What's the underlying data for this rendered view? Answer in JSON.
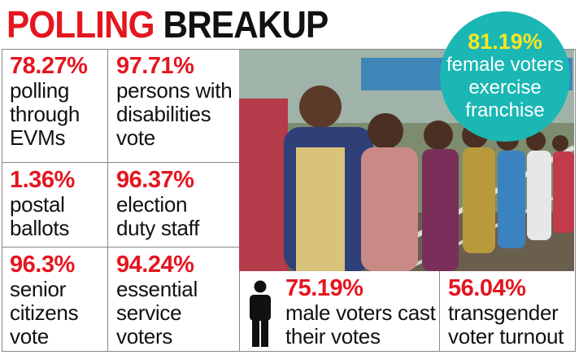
{
  "title": {
    "part1": "POLLING",
    "part2": "BREAKUP"
  },
  "stats": [
    {
      "percent": "78.27%",
      "label": [
        "polling",
        "through",
        "EVMs"
      ]
    },
    {
      "percent": "97.71%",
      "label": [
        "persons with",
        "disabilities",
        "vote"
      ]
    },
    {
      "percent": "1.36%",
      "label": [
        "postal",
        "ballots"
      ]
    },
    {
      "percent": "96.37%",
      "label": [
        "election",
        "duty staff"
      ]
    },
    {
      "percent": "96.3%",
      "label": [
        "senior",
        "citizens",
        "vote"
      ]
    },
    {
      "percent": "94.24%",
      "label": [
        "essential",
        "service",
        "voters"
      ]
    }
  ],
  "female": {
    "percent": "81.19%",
    "label": [
      "female voters",
      "exercise",
      "franchise"
    ]
  },
  "male": {
    "percent": "75.19%",
    "label": [
      "male voters cast",
      "their votes"
    ],
    "icon": "male-person-icon"
  },
  "transgender": {
    "percent": "56.04%",
    "label": [
      "transgender",
      "voter turnout"
    ]
  },
  "colors": {
    "accent_red": "#e4161f",
    "bubble_teal": "#1ab7b4",
    "bubble_yellow": "#f5e626"
  }
}
